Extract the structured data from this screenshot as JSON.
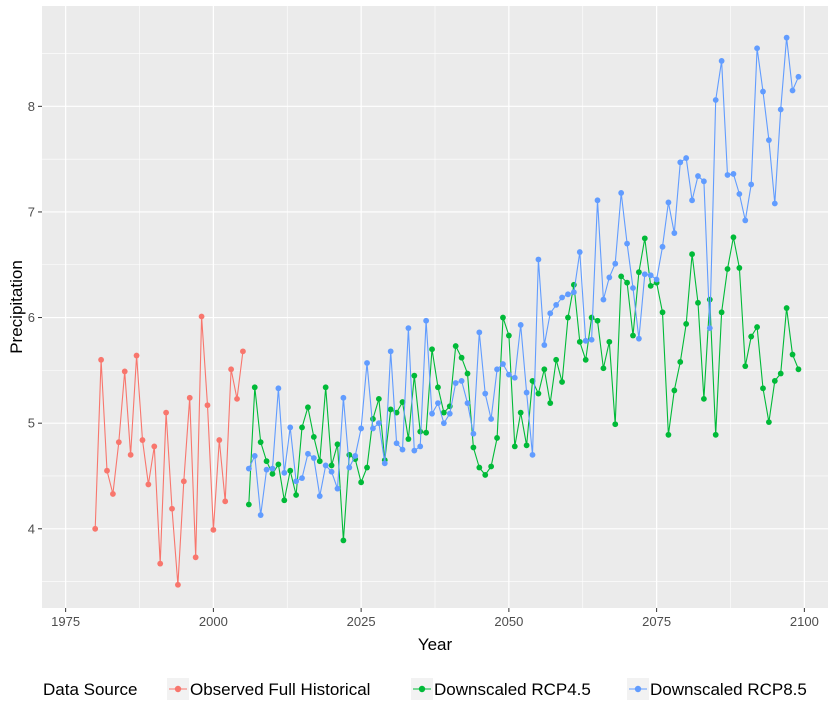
{
  "chart_data": {
    "type": "line",
    "xlabel": "Year",
    "ylabel": "Precipitation",
    "xlim": [
      1971,
      2104
    ],
    "ylim": [
      3.25,
      8.95
    ],
    "x_ticks": [
      1975,
      2000,
      2025,
      2050,
      2075,
      2100
    ],
    "y_ticks": [
      4,
      5,
      6,
      7,
      8
    ],
    "x_tick_labels": [
      "1975",
      "2000",
      "2025",
      "2050",
      "2075",
      "2100"
    ],
    "y_tick_labels": [
      "4",
      "5",
      "6",
      "7",
      "8"
    ],
    "grid": true,
    "legend": {
      "title": "Data Source",
      "placement": "bottom"
    },
    "series": [
      {
        "name": "Observed Full Historical",
        "color": "#F8766D",
        "x": [
          1980,
          1981,
          1982,
          1983,
          1984,
          1985,
          1986,
          1987,
          1988,
          1989,
          1990,
          1991,
          1992,
          1993,
          1994,
          1995,
          1996,
          1997,
          1998,
          1999,
          2000,
          2001,
          2002,
          2003,
          2004,
          2005
        ],
        "values": [
          4.0,
          5.6,
          4.55,
          4.33,
          4.82,
          5.49,
          4.7,
          5.64,
          4.84,
          4.42,
          4.78,
          3.67,
          5.1,
          4.19,
          3.47,
          4.45,
          5.24,
          3.73,
          6.01,
          5.17,
          3.99,
          4.84,
          4.26,
          5.51,
          5.23,
          5.68
        ]
      },
      {
        "name": "Downscaled RCP4.5",
        "color": "#00BA38",
        "x": [
          2006,
          2007,
          2008,
          2009,
          2010,
          2011,
          2012,
          2013,
          2014,
          2015,
          2016,
          2017,
          2018,
          2019,
          2020,
          2021,
          2022,
          2023,
          2024,
          2025,
          2026,
          2027,
          2028,
          2029,
          2030,
          2031,
          2032,
          2033,
          2034,
          2035,
          2036,
          2037,
          2038,
          2039,
          2040,
          2041,
          2042,
          2043,
          2044,
          2045,
          2046,
          2047,
          2048,
          2049,
          2050,
          2051,
          2052,
          2053,
          2054,
          2055,
          2056,
          2057,
          2058,
          2059,
          2060,
          2061,
          2062,
          2063,
          2064,
          2065,
          2066,
          2067,
          2068,
          2069,
          2070,
          2071,
          2072,
          2073,
          2074,
          2075,
          2076,
          2077,
          2078,
          2079,
          2080,
          2081,
          2082,
          2083,
          2084,
          2085,
          2086,
          2087,
          2088,
          2089,
          2090,
          2091,
          2092,
          2093,
          2094,
          2095,
          2096,
          2097,
          2098,
          2099
        ],
        "values": [
          4.23,
          5.34,
          4.82,
          4.64,
          4.52,
          4.61,
          4.27,
          4.55,
          4.32,
          4.96,
          5.15,
          4.87,
          4.64,
          5.34,
          4.6,
          4.8,
          3.89,
          4.7,
          4.66,
          4.44,
          4.58,
          5.04,
          5.23,
          4.65,
          5.13,
          5.1,
          5.2,
          4.85,
          5.45,
          4.92,
          4.91,
          5.7,
          5.34,
          5.1,
          5.16,
          5.73,
          5.62,
          5.47,
          4.77,
          4.58,
          4.51,
          4.59,
          4.86,
          6.0,
          5.83,
          4.78,
          5.1,
          4.79,
          5.4,
          5.28,
          5.51,
          5.19,
          5.6,
          5.39,
          6.0,
          6.31,
          5.77,
          5.6,
          6.0,
          5.97,
          5.52,
          5.77,
          4.99,
          6.39,
          6.33,
          5.83,
          6.43,
          6.75,
          6.3,
          6.33,
          6.05,
          4.89,
          5.31,
          5.58,
          5.94,
          6.6,
          6.14,
          5.23,
          6.17,
          4.89,
          6.05,
          6.46,
          6.76,
          6.47,
          5.54,
          5.82,
          5.91,
          5.33,
          5.01,
          5.4,
          5.47,
          6.09,
          5.65,
          5.51
        ]
      },
      {
        "name": "Downscaled RCP8.5",
        "color": "#619CFF",
        "x": [
          2006,
          2007,
          2008,
          2009,
          2010,
          2011,
          2012,
          2013,
          2014,
          2015,
          2016,
          2017,
          2018,
          2019,
          2020,
          2021,
          2022,
          2023,
          2024,
          2025,
          2026,
          2027,
          2028,
          2029,
          2030,
          2031,
          2032,
          2033,
          2034,
          2035,
          2036,
          2037,
          2038,
          2039,
          2040,
          2041,
          2042,
          2043,
          2044,
          2045,
          2046,
          2047,
          2048,
          2049,
          2050,
          2051,
          2052,
          2053,
          2054,
          2055,
          2056,
          2057,
          2058,
          2059,
          2060,
          2061,
          2062,
          2063,
          2064,
          2065,
          2066,
          2067,
          2068,
          2069,
          2070,
          2071,
          2072,
          2073,
          2074,
          2075,
          2076,
          2077,
          2078,
          2079,
          2080,
          2081,
          2082,
          2083,
          2084,
          2085,
          2086,
          2087,
          2088,
          2089,
          2090,
          2091,
          2092,
          2093,
          2094,
          2095,
          2096,
          2097,
          2098,
          2099
        ],
        "values": [
          4.57,
          4.69,
          4.13,
          4.56,
          4.57,
          5.33,
          4.53,
          4.96,
          4.45,
          4.48,
          4.71,
          4.67,
          4.31,
          4.6,
          4.54,
          4.38,
          5.24,
          4.58,
          4.69,
          4.95,
          5.57,
          4.95,
          5.0,
          4.62,
          5.68,
          4.81,
          4.75,
          5.9,
          4.74,
          4.78,
          5.97,
          5.09,
          5.19,
          5.0,
          5.09,
          5.38,
          5.4,
          5.19,
          4.9,
          5.86,
          5.28,
          5.04,
          5.51,
          5.56,
          5.46,
          5.43,
          5.93,
          5.29,
          4.7,
          6.55,
          5.74,
          6.04,
          6.12,
          6.19,
          6.22,
          6.24,
          6.62,
          5.78,
          5.79,
          7.11,
          6.17,
          6.38,
          6.51,
          7.18,
          6.7,
          6.28,
          5.8,
          6.41,
          6.4,
          6.36,
          6.67,
          7.09,
          6.8,
          7.47,
          7.51,
          7.11,
          7.34,
          7.29,
          5.9,
          8.06,
          8.43,
          7.35,
          7.36,
          7.17,
          6.92,
          7.26,
          8.55,
          8.14,
          7.68,
          7.08,
          7.97,
          8.65,
          8.15,
          8.28
        ]
      }
    ]
  }
}
